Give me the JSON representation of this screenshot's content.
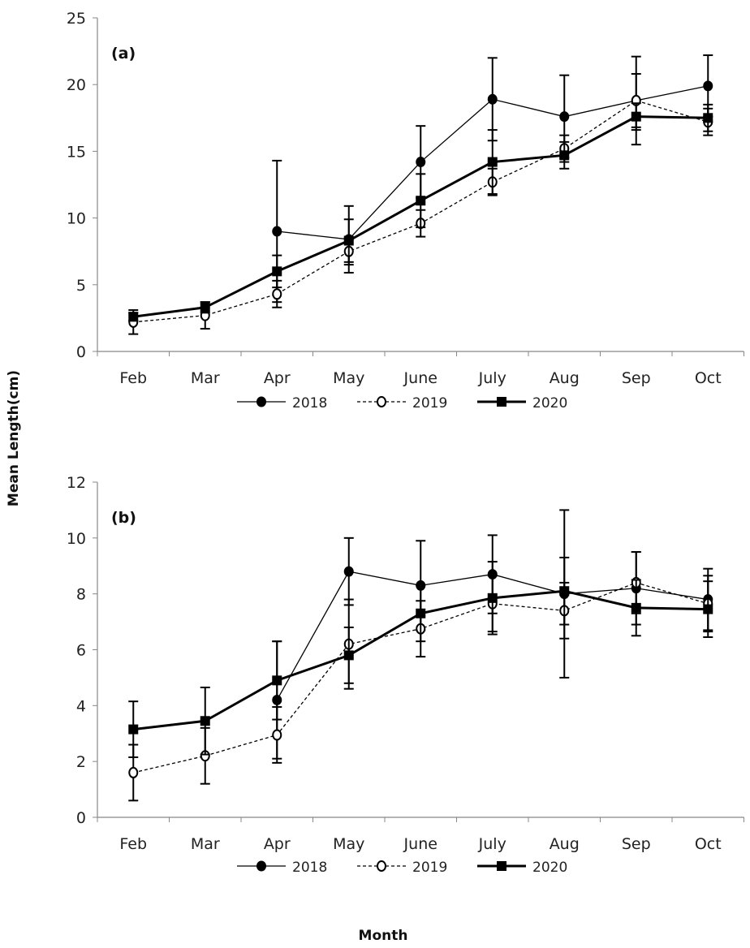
{
  "chart_data": [
    {
      "type": "line",
      "panel_label": "(a)",
      "categories": [
        "Feb",
        "Mar",
        "Apr",
        "May",
        "June",
        "July",
        "Aug",
        "Sep",
        "Oct"
      ],
      "ylabel": "Mean Length(cm)",
      "xlabel": "Month",
      "ylim": [
        0,
        25
      ],
      "yticks": [
        0,
        5,
        10,
        15,
        20,
        25
      ],
      "grid": false,
      "legend_position": "bottom",
      "series": [
        {
          "name": "2018",
          "marker": "filled-circle",
          "line": "thin-solid",
          "values": [
            null,
            null,
            9.0,
            8.4,
            14.2,
            18.9,
            17.6,
            18.8,
            19.9
          ],
          "errors": [
            null,
            null,
            5.3,
            2.5,
            2.7,
            3.1,
            3.1,
            3.3,
            2.3
          ]
        },
        {
          "name": "2019",
          "marker": "open-circle",
          "line": "dashed",
          "values": [
            2.2,
            2.7,
            4.3,
            7.5,
            9.6,
            12.7,
            15.2,
            18.8,
            17.2
          ],
          "errors": [
            0.9,
            1.0,
            1.0,
            1.0,
            1.0,
            1.0,
            1.0,
            2.0,
            1.0
          ]
        },
        {
          "name": "2020",
          "marker": "filled-square",
          "line": "thick-solid",
          "values": [
            2.6,
            3.3,
            6.0,
            8.3,
            11.3,
            14.2,
            14.7,
            17.6,
            17.5
          ],
          "errors": [
            0.3,
            0.4,
            1.2,
            1.6,
            2.0,
            2.4,
            1.0,
            1.0,
            1.0
          ]
        }
      ]
    },
    {
      "type": "line",
      "panel_label": "(b)",
      "categories": [
        "Feb",
        "Mar",
        "Apr",
        "May",
        "June",
        "July",
        "Aug",
        "Sep",
        "Oct"
      ],
      "ylabel": "Mean Length(cm)",
      "xlabel": "Month",
      "ylim": [
        0,
        12
      ],
      "yticks": [
        0,
        2,
        4,
        6,
        8,
        10,
        12
      ],
      "grid": false,
      "legend_position": "bottom",
      "series": [
        {
          "name": "2018",
          "marker": "filled-circle",
          "line": "thin-solid",
          "values": [
            null,
            null,
            4.2,
            8.8,
            8.3,
            8.7,
            8.0,
            8.2,
            7.8
          ],
          "errors": [
            null,
            null,
            2.1,
            1.2,
            1.6,
            1.4,
            3.0,
            1.3,
            1.1
          ]
        },
        {
          "name": "2019",
          "marker": "open-circle",
          "line": "dashed",
          "values": [
            1.6,
            2.2,
            2.95,
            6.2,
            6.75,
            7.65,
            7.4,
            8.4,
            7.65
          ],
          "errors": [
            1.0,
            1.0,
            1.0,
            1.6,
            1.0,
            1.0,
            1.0,
            1.1,
            1.0
          ]
        },
        {
          "name": "2020",
          "marker": "filled-square",
          "line": "thick-solid",
          "values": [
            3.15,
            3.45,
            4.9,
            5.8,
            7.3,
            7.85,
            8.1,
            7.5,
            7.45
          ],
          "errors": [
            1.0,
            1.2,
            1.4,
            1.0,
            1.0,
            1.3,
            1.2,
            1.0,
            1.0
          ]
        }
      ]
    }
  ],
  "labels": {
    "ylabel": "Mean Length(cm)",
    "xlabel": "Month"
  }
}
